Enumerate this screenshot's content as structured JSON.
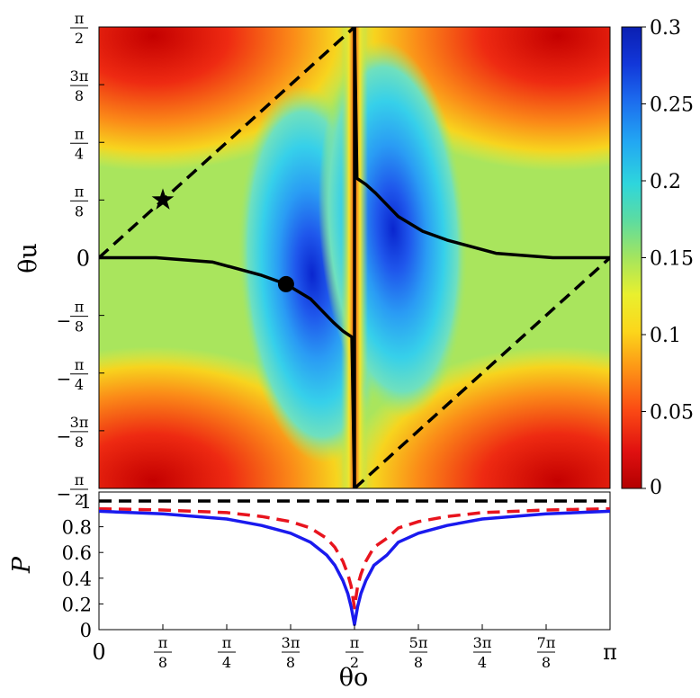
{
  "chart_data": [
    {
      "type": "heatmap",
      "xlabel": "",
      "ylabel": "θu",
      "xlim": [
        0,
        3.14159
      ],
      "ylim": [
        -1.5708,
        1.5708
      ],
      "yticks": [
        {
          "v": 1.5708,
          "label": "π/2"
        },
        {
          "v": 1.1781,
          "label": "3π/8"
        },
        {
          "v": 0.7854,
          "label": "π/4"
        },
        {
          "v": 0.3927,
          "label": "π/8"
        },
        {
          "v": 0,
          "label": "0"
        },
        {
          "v": -0.3927,
          "label": "−π/8"
        },
        {
          "v": -0.7854,
          "label": "−π/4"
        },
        {
          "v": -1.1781,
          "label": "−3π/8"
        },
        {
          "v": -1.5708,
          "label": "−π/2"
        }
      ],
      "colorbar": {
        "min": 0,
        "max": 0.3,
        "ticks": [
          0,
          0.05,
          0.1,
          0.15,
          0.2,
          0.25,
          0.3
        ],
        "tick_labels": [
          "0",
          "0.05",
          "0.1",
          "0.15",
          "0.2",
          "0.25",
          "0.3"
        ],
        "colormap": "jet-reversed"
      },
      "curves": [
        {
          "style": "dashed",
          "points": [
            [
              0,
              0
            ],
            [
              1.5708,
              1.5708
            ]
          ]
        },
        {
          "style": "dashed",
          "points": [
            [
              1.5708,
              -1.5708
            ],
            [
              3.1416,
              0
            ]
          ]
        },
        {
          "style": "solid",
          "points": [
            [
              0,
              0
            ],
            [
              0.35,
              0.0
            ],
            [
              0.7,
              -0.03
            ],
            [
              1.0,
              -0.12
            ],
            [
              1.15,
              -0.18
            ],
            [
              1.3,
              -0.28
            ],
            [
              1.44,
              -0.44
            ],
            [
              1.5,
              -0.5
            ],
            [
              1.555,
              -0.54
            ],
            [
              1.5708,
              -1.5708
            ]
          ]
        },
        {
          "style": "solid",
          "points": [
            [
              1.5708,
              1.5708
            ],
            [
              1.586,
              0.54
            ],
            [
              1.64,
              0.5
            ],
            [
              1.7,
              0.44
            ],
            [
              1.84,
              0.28
            ],
            [
              1.99,
              0.18
            ],
            [
              2.14,
              0.12
            ],
            [
              2.44,
              0.03
            ],
            [
              2.79,
              0.0
            ],
            [
              3.1416,
              0
            ]
          ]
        },
        {
          "style": "solid",
          "points": [
            [
              1.5708,
              1.5708
            ],
            [
              1.5708,
              -1.5708
            ]
          ]
        }
      ],
      "markers": [
        {
          "symbol": "star",
          "x": 0.3927,
          "y": 0.3927
        },
        {
          "symbol": "circle",
          "x": 1.15,
          "y": -0.18
        }
      ]
    },
    {
      "type": "line",
      "xlabel": "θo",
      "ylabel": "P",
      "xlim": [
        0,
        3.14159
      ],
      "ylim": [
        0,
        1.07
      ],
      "xticks": [
        {
          "v": 0,
          "label": "0"
        },
        {
          "v": 0.3927,
          "label": "π/8"
        },
        {
          "v": 0.7854,
          "label": "π/4"
        },
        {
          "v": 1.1781,
          "label": "3π/8"
        },
        {
          "v": 1.5708,
          "label": "π/2"
        },
        {
          "v": 1.9635,
          "label": "5π/8"
        },
        {
          "v": 2.3562,
          "label": "3π/4"
        },
        {
          "v": 2.7489,
          "label": "7π/8"
        },
        {
          "v": 3.14159,
          "label": "π"
        }
      ],
      "yticks": [
        0,
        0.2,
        0.4,
        0.6,
        0.8,
        1
      ],
      "series": [
        {
          "style": "dashed",
          "color": "#000000",
          "x": [
            0,
            3.14159
          ],
          "values": [
            1,
            1
          ]
        },
        {
          "style": "dashed",
          "color": "#e8141e",
          "x": [
            0,
            0.3927,
            0.7854,
            1.0,
            1.1781,
            1.3,
            1.4,
            1.45,
            1.5,
            1.53,
            1.55,
            1.5708,
            1.59,
            1.61,
            1.64,
            1.69,
            1.77,
            1.84,
            1.9635,
            2.14,
            2.3562,
            2.7489,
            3.14159
          ],
          "values": [
            0.94,
            0.93,
            0.91,
            0.88,
            0.84,
            0.79,
            0.71,
            0.64,
            0.53,
            0.43,
            0.34,
            0.17,
            0.34,
            0.43,
            0.53,
            0.64,
            0.71,
            0.79,
            0.84,
            0.88,
            0.91,
            0.93,
            0.94
          ]
        },
        {
          "style": "solid",
          "color": "#1a1aee",
          "x": [
            0,
            0.3927,
            0.7854,
            1.0,
            1.1781,
            1.3,
            1.4,
            1.45,
            1.5,
            1.53,
            1.55,
            1.5708,
            1.59,
            1.61,
            1.64,
            1.69,
            1.77,
            1.84,
            1.9635,
            2.14,
            2.3562,
            2.7489,
            3.14159
          ],
          "values": [
            0.92,
            0.9,
            0.86,
            0.81,
            0.75,
            0.68,
            0.58,
            0.5,
            0.38,
            0.28,
            0.18,
            0.04,
            0.18,
            0.28,
            0.38,
            0.5,
            0.58,
            0.68,
            0.75,
            0.81,
            0.86,
            0.9,
            0.92
          ]
        }
      ]
    }
  ]
}
